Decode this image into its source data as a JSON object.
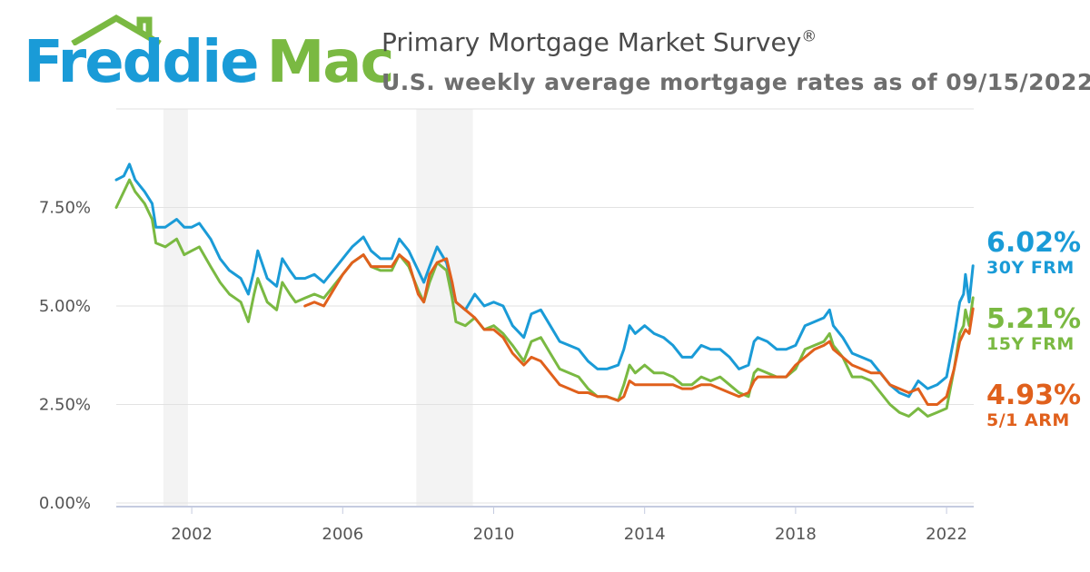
{
  "brand": {
    "word1": "Freddie",
    "word2": "Mac",
    "blue": "#1a9bd7",
    "green": "#7ab942"
  },
  "header": {
    "title": "Primary Mortgage Market Survey",
    "title_mark": "®",
    "subtitle": "U.S. weekly average mortgage rates as of 09/15/2022"
  },
  "legend": [
    {
      "value": "6.02%",
      "label": "30Y FRM",
      "color": "#1a9bd7"
    },
    {
      "value": "5.21%",
      "label": "15Y FRM",
      "color": "#7ab942"
    },
    {
      "value": "4.93%",
      "label": "5/1 ARM",
      "color": "#e0601c"
    }
  ],
  "chart_data": {
    "type": "line",
    "x_unit": "year",
    "y_unit": "%",
    "xlim": [
      2000.0,
      2022.72
    ],
    "ylim": [
      0,
      10
    ],
    "grid": true,
    "y_ticks": [
      0,
      2.5,
      5,
      7.5
    ],
    "y_tick_labels": [
      "0.00%",
      "2.50%",
      "5.00%",
      "7.50%"
    ],
    "x_ticks": [
      2002,
      2006,
      2010,
      2014,
      2018,
      2022
    ],
    "x_tick_labels": [
      "2002",
      "2006",
      "2010",
      "2014",
      "2018",
      "2022"
    ],
    "shaded_periods": [
      [
        2001.25,
        2001.9
      ],
      [
        2007.95,
        2009.45
      ]
    ],
    "series": [
      {
        "name": "30Y FRM",
        "color": "#1a9bd7",
        "points": [
          [
            2000.0,
            8.2
          ],
          [
            2000.2,
            8.3
          ],
          [
            2000.35,
            8.6
          ],
          [
            2000.5,
            8.2
          ],
          [
            2000.75,
            7.9
          ],
          [
            2000.95,
            7.6
          ],
          [
            2001.05,
            7.0
          ],
          [
            2001.3,
            7.0
          ],
          [
            2001.6,
            7.2
          ],
          [
            2001.8,
            7.0
          ],
          [
            2002.0,
            7.0
          ],
          [
            2002.2,
            7.1
          ],
          [
            2002.5,
            6.7
          ],
          [
            2002.75,
            6.2
          ],
          [
            2003.0,
            5.9
          ],
          [
            2003.3,
            5.7
          ],
          [
            2003.5,
            5.3
          ],
          [
            2003.65,
            5.9
          ],
          [
            2003.75,
            6.4
          ],
          [
            2004.0,
            5.7
          ],
          [
            2004.25,
            5.5
          ],
          [
            2004.4,
            6.2
          ],
          [
            2004.6,
            5.9
          ],
          [
            2004.75,
            5.7
          ],
          [
            2005.0,
            5.7
          ],
          [
            2005.25,
            5.8
          ],
          [
            2005.5,
            5.6
          ],
          [
            2005.75,
            5.9
          ],
          [
            2006.0,
            6.2
          ],
          [
            2006.25,
            6.5
          ],
          [
            2006.55,
            6.75
          ],
          [
            2006.75,
            6.4
          ],
          [
            2007.0,
            6.2
          ],
          [
            2007.3,
            6.2
          ],
          [
            2007.5,
            6.7
          ],
          [
            2007.75,
            6.4
          ],
          [
            2008.0,
            5.9
          ],
          [
            2008.15,
            5.6
          ],
          [
            2008.3,
            6.0
          ],
          [
            2008.5,
            6.5
          ],
          [
            2008.75,
            6.1
          ],
          [
            2008.9,
            5.5
          ],
          [
            2009.0,
            5.1
          ],
          [
            2009.25,
            4.9
          ],
          [
            2009.5,
            5.3
          ],
          [
            2009.75,
            5.0
          ],
          [
            2010.0,
            5.1
          ],
          [
            2010.25,
            5.0
          ],
          [
            2010.5,
            4.5
          ],
          [
            2010.8,
            4.2
          ],
          [
            2011.0,
            4.8
          ],
          [
            2011.25,
            4.9
          ],
          [
            2011.5,
            4.5
          ],
          [
            2011.75,
            4.1
          ],
          [
            2012.0,
            4.0
          ],
          [
            2012.25,
            3.9
          ],
          [
            2012.5,
            3.6
          ],
          [
            2012.75,
            3.4
          ],
          [
            2013.0,
            3.4
          ],
          [
            2013.3,
            3.5
          ],
          [
            2013.45,
            3.9
          ],
          [
            2013.6,
            4.5
          ],
          [
            2013.75,
            4.3
          ],
          [
            2014.0,
            4.5
          ],
          [
            2014.25,
            4.3
          ],
          [
            2014.5,
            4.2
          ],
          [
            2014.75,
            4.0
          ],
          [
            2015.0,
            3.7
          ],
          [
            2015.25,
            3.7
          ],
          [
            2015.5,
            4.0
          ],
          [
            2015.75,
            3.9
          ],
          [
            2016.0,
            3.9
          ],
          [
            2016.25,
            3.7
          ],
          [
            2016.5,
            3.4
          ],
          [
            2016.75,
            3.5
          ],
          [
            2016.9,
            4.1
          ],
          [
            2017.0,
            4.2
          ],
          [
            2017.25,
            4.1
          ],
          [
            2017.5,
            3.9
          ],
          [
            2017.75,
            3.9
          ],
          [
            2018.0,
            4.0
          ],
          [
            2018.25,
            4.5
          ],
          [
            2018.5,
            4.6
          ],
          [
            2018.75,
            4.7
          ],
          [
            2018.9,
            4.9
          ],
          [
            2019.0,
            4.5
          ],
          [
            2019.25,
            4.2
          ],
          [
            2019.5,
            3.8
          ],
          [
            2019.75,
            3.7
          ],
          [
            2020.0,
            3.6
          ],
          [
            2020.25,
            3.3
          ],
          [
            2020.5,
            3.0
          ],
          [
            2020.75,
            2.8
          ],
          [
            2021.0,
            2.7
          ],
          [
            2021.25,
            3.1
          ],
          [
            2021.5,
            2.9
          ],
          [
            2021.75,
            3.0
          ],
          [
            2022.0,
            3.2
          ],
          [
            2022.2,
            4.2
          ],
          [
            2022.35,
            5.1
          ],
          [
            2022.45,
            5.3
          ],
          [
            2022.5,
            5.8
          ],
          [
            2022.6,
            5.1
          ],
          [
            2022.7,
            6.02
          ]
        ]
      },
      {
        "name": "15Y FRM",
        "color": "#7ab942",
        "points": [
          [
            2000.0,
            7.5
          ],
          [
            2000.2,
            7.9
          ],
          [
            2000.35,
            8.2
          ],
          [
            2000.5,
            7.9
          ],
          [
            2000.75,
            7.6
          ],
          [
            2000.95,
            7.2
          ],
          [
            2001.05,
            6.6
          ],
          [
            2001.3,
            6.5
          ],
          [
            2001.6,
            6.7
          ],
          [
            2001.8,
            6.3
          ],
          [
            2002.0,
            6.4
          ],
          [
            2002.2,
            6.5
          ],
          [
            2002.5,
            6.0
          ],
          [
            2002.75,
            5.6
          ],
          [
            2003.0,
            5.3
          ],
          [
            2003.3,
            5.1
          ],
          [
            2003.5,
            4.6
          ],
          [
            2003.65,
            5.3
          ],
          [
            2003.75,
            5.7
          ],
          [
            2004.0,
            5.1
          ],
          [
            2004.25,
            4.9
          ],
          [
            2004.4,
            5.6
          ],
          [
            2004.6,
            5.3
          ],
          [
            2004.75,
            5.1
          ],
          [
            2005.0,
            5.2
          ],
          [
            2005.25,
            5.3
          ],
          [
            2005.5,
            5.2
          ],
          [
            2005.75,
            5.5
          ],
          [
            2006.0,
            5.8
          ],
          [
            2006.25,
            6.1
          ],
          [
            2006.55,
            6.3
          ],
          [
            2006.75,
            6.0
          ],
          [
            2007.0,
            5.9
          ],
          [
            2007.3,
            5.9
          ],
          [
            2007.5,
            6.3
          ],
          [
            2007.75,
            6.0
          ],
          [
            2008.0,
            5.4
          ],
          [
            2008.15,
            5.1
          ],
          [
            2008.3,
            5.6
          ],
          [
            2008.5,
            6.1
          ],
          [
            2008.75,
            5.9
          ],
          [
            2008.9,
            5.2
          ],
          [
            2009.0,
            4.6
          ],
          [
            2009.25,
            4.5
          ],
          [
            2009.5,
            4.7
          ],
          [
            2009.75,
            4.4
          ],
          [
            2010.0,
            4.5
          ],
          [
            2010.25,
            4.3
          ],
          [
            2010.5,
            4.0
          ],
          [
            2010.8,
            3.6
          ],
          [
            2011.0,
            4.1
          ],
          [
            2011.25,
            4.2
          ],
          [
            2011.5,
            3.8
          ],
          [
            2011.75,
            3.4
          ],
          [
            2012.0,
            3.3
          ],
          [
            2012.25,
            3.2
          ],
          [
            2012.5,
            2.9
          ],
          [
            2012.75,
            2.7
          ],
          [
            2013.0,
            2.7
          ],
          [
            2013.3,
            2.6
          ],
          [
            2013.45,
            3.0
          ],
          [
            2013.6,
            3.5
          ],
          [
            2013.75,
            3.3
          ],
          [
            2014.0,
            3.5
          ],
          [
            2014.25,
            3.3
          ],
          [
            2014.5,
            3.3
          ],
          [
            2014.75,
            3.2
          ],
          [
            2015.0,
            3.0
          ],
          [
            2015.25,
            3.0
          ],
          [
            2015.5,
            3.2
          ],
          [
            2015.75,
            3.1
          ],
          [
            2016.0,
            3.2
          ],
          [
            2016.25,
            3.0
          ],
          [
            2016.5,
            2.8
          ],
          [
            2016.75,
            2.7
          ],
          [
            2016.9,
            3.3
          ],
          [
            2017.0,
            3.4
          ],
          [
            2017.25,
            3.3
          ],
          [
            2017.5,
            3.2
          ],
          [
            2017.75,
            3.2
          ],
          [
            2018.0,
            3.4
          ],
          [
            2018.25,
            3.9
          ],
          [
            2018.5,
            4.0
          ],
          [
            2018.75,
            4.1
          ],
          [
            2018.9,
            4.3
          ],
          [
            2019.0,
            4.0
          ],
          [
            2019.25,
            3.7
          ],
          [
            2019.5,
            3.2
          ],
          [
            2019.75,
            3.2
          ],
          [
            2020.0,
            3.1
          ],
          [
            2020.25,
            2.8
          ],
          [
            2020.5,
            2.5
          ],
          [
            2020.75,
            2.3
          ],
          [
            2021.0,
            2.2
          ],
          [
            2021.25,
            2.4
          ],
          [
            2021.5,
            2.2
          ],
          [
            2021.75,
            2.3
          ],
          [
            2022.0,
            2.4
          ],
          [
            2022.2,
            3.4
          ],
          [
            2022.35,
            4.3
          ],
          [
            2022.45,
            4.5
          ],
          [
            2022.5,
            4.9
          ],
          [
            2022.6,
            4.5
          ],
          [
            2022.7,
            5.21
          ]
        ]
      },
      {
        "name": "5/1 ARM",
        "color": "#e0601c",
        "points": [
          [
            2005.0,
            5.0
          ],
          [
            2005.25,
            5.1
          ],
          [
            2005.5,
            5.0
          ],
          [
            2005.75,
            5.4
          ],
          [
            2006.0,
            5.8
          ],
          [
            2006.25,
            6.1
          ],
          [
            2006.55,
            6.3
          ],
          [
            2006.75,
            6.0
          ],
          [
            2007.0,
            6.0
          ],
          [
            2007.3,
            6.0
          ],
          [
            2007.5,
            6.3
          ],
          [
            2007.75,
            6.1
          ],
          [
            2008.0,
            5.3
          ],
          [
            2008.15,
            5.1
          ],
          [
            2008.3,
            5.8
          ],
          [
            2008.5,
            6.1
          ],
          [
            2008.75,
            6.2
          ],
          [
            2008.9,
            5.6
          ],
          [
            2009.0,
            5.1
          ],
          [
            2009.25,
            4.9
          ],
          [
            2009.5,
            4.7
          ],
          [
            2009.75,
            4.4
          ],
          [
            2010.0,
            4.4
          ],
          [
            2010.25,
            4.2
          ],
          [
            2010.5,
            3.8
          ],
          [
            2010.8,
            3.5
          ],
          [
            2011.0,
            3.7
          ],
          [
            2011.25,
            3.6
          ],
          [
            2011.5,
            3.3
          ],
          [
            2011.75,
            3.0
          ],
          [
            2012.0,
            2.9
          ],
          [
            2012.25,
            2.8
          ],
          [
            2012.5,
            2.8
          ],
          [
            2012.75,
            2.7
          ],
          [
            2013.0,
            2.7
          ],
          [
            2013.3,
            2.6
          ],
          [
            2013.45,
            2.7
          ],
          [
            2013.6,
            3.1
          ],
          [
            2013.75,
            3.0
          ],
          [
            2014.0,
            3.0
          ],
          [
            2014.25,
            3.0
          ],
          [
            2014.5,
            3.0
          ],
          [
            2014.75,
            3.0
          ],
          [
            2015.0,
            2.9
          ],
          [
            2015.25,
            2.9
          ],
          [
            2015.5,
            3.0
          ],
          [
            2015.75,
            3.0
          ],
          [
            2016.0,
            2.9
          ],
          [
            2016.25,
            2.8
          ],
          [
            2016.5,
            2.7
          ],
          [
            2016.75,
            2.8
          ],
          [
            2016.9,
            3.1
          ],
          [
            2017.0,
            3.2
          ],
          [
            2017.25,
            3.2
          ],
          [
            2017.5,
            3.2
          ],
          [
            2017.75,
            3.2
          ],
          [
            2018.0,
            3.5
          ],
          [
            2018.25,
            3.7
          ],
          [
            2018.5,
            3.9
          ],
          [
            2018.75,
            4.0
          ],
          [
            2018.9,
            4.1
          ],
          [
            2019.0,
            3.9
          ],
          [
            2019.25,
            3.7
          ],
          [
            2019.5,
            3.5
          ],
          [
            2019.75,
            3.4
          ],
          [
            2020.0,
            3.3
          ],
          [
            2020.25,
            3.3
          ],
          [
            2020.5,
            3.0
          ],
          [
            2020.75,
            2.9
          ],
          [
            2021.0,
            2.8
          ],
          [
            2021.25,
            2.9
          ],
          [
            2021.5,
            2.5
          ],
          [
            2021.75,
            2.5
          ],
          [
            2022.0,
            2.7
          ],
          [
            2022.2,
            3.4
          ],
          [
            2022.35,
            4.1
          ],
          [
            2022.45,
            4.3
          ],
          [
            2022.5,
            4.4
          ],
          [
            2022.6,
            4.3
          ],
          [
            2022.7,
            4.93
          ]
        ]
      }
    ]
  }
}
